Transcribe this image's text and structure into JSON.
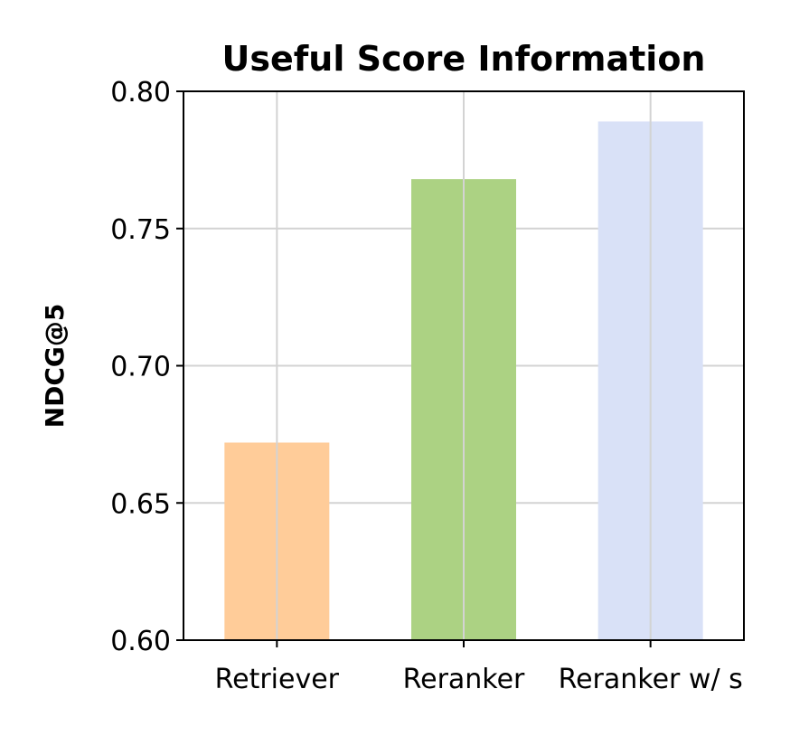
{
  "chart_data": {
    "type": "bar",
    "title": "Useful Score Information",
    "xlabel": "",
    "ylabel": "NDCG@5",
    "categories": [
      "Retriever",
      "Reranker",
      "Reranker w/ s"
    ],
    "values": [
      0.672,
      0.768,
      0.789
    ],
    "colors": [
      "#ffcc99",
      "#acd283",
      "#d9e1f7"
    ],
    "ylim": [
      0.6,
      0.8
    ],
    "yticks": [
      0.6,
      0.65,
      0.7,
      0.75,
      0.8
    ],
    "ytick_labels": [
      "0.60",
      "0.65",
      "0.70",
      "0.75",
      "0.80"
    ],
    "grid": true,
    "legend": "none"
  }
}
